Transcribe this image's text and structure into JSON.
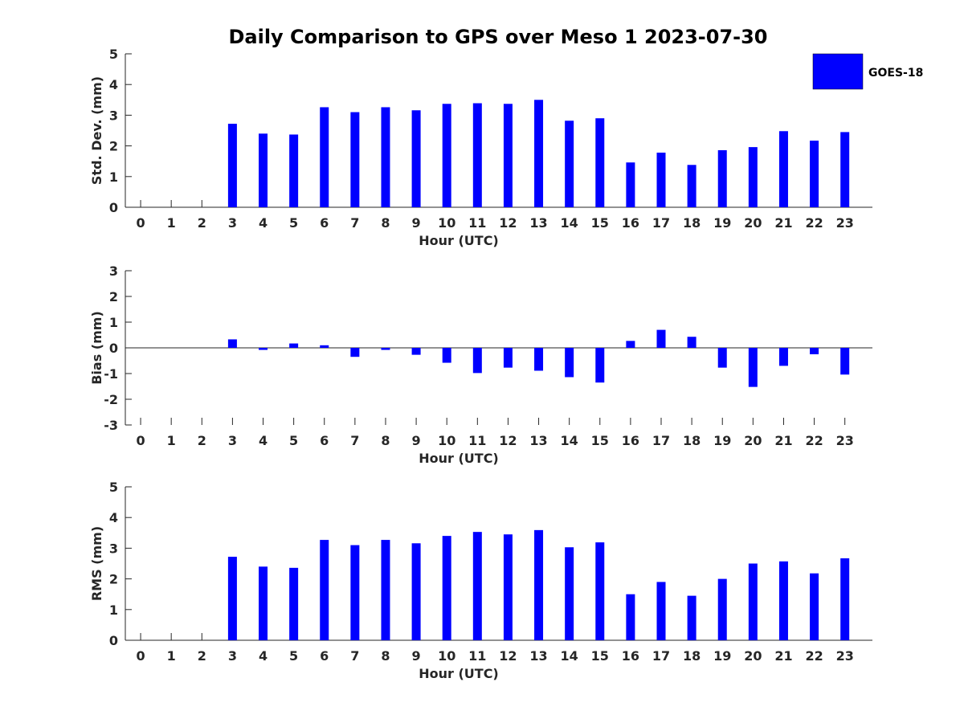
{
  "title": "Daily Comparison to GPS over Meso 1 2023-07-30",
  "legend": {
    "label": "GOES-18",
    "color": "#0000ff",
    "position": "top-right"
  },
  "chart_data": [
    {
      "type": "bar",
      "series_name": "GOES-18",
      "xlabel": "Hour (UTC)",
      "ylabel": "Std. Dev. (mm)",
      "ylim": [
        0,
        5
      ],
      "yticks": [
        0,
        1,
        2,
        3,
        4,
        5
      ],
      "categories": [
        0,
        1,
        2,
        3,
        4,
        5,
        6,
        7,
        8,
        9,
        10,
        11,
        12,
        13,
        14,
        15,
        16,
        17,
        18,
        19,
        20,
        21,
        22,
        23
      ],
      "values": [
        null,
        null,
        null,
        2.72,
        2.4,
        2.37,
        3.26,
        3.1,
        3.26,
        3.16,
        3.37,
        3.39,
        3.37,
        3.5,
        2.82,
        2.9,
        1.46,
        1.78,
        1.38,
        1.86,
        1.96,
        2.48,
        2.17,
        2.45
      ],
      "grid": false
    },
    {
      "type": "bar",
      "series_name": "GOES-18",
      "xlabel": "Hour (UTC)",
      "ylabel": "Bias (mm)",
      "ylim": [
        -3,
        3
      ],
      "yticks": [
        -3,
        -2,
        -1,
        0,
        1,
        2,
        3
      ],
      "categories": [
        0,
        1,
        2,
        3,
        4,
        5,
        6,
        7,
        8,
        9,
        10,
        11,
        12,
        13,
        14,
        15,
        16,
        17,
        18,
        19,
        20,
        21,
        22,
        23
      ],
      "values": [
        null,
        null,
        null,
        0.33,
        -0.08,
        0.17,
        0.1,
        -0.35,
        -0.08,
        -0.27,
        -0.58,
        -0.98,
        -0.77,
        -0.89,
        -1.14,
        -1.35,
        0.27,
        0.7,
        0.43,
        -0.77,
        -1.52,
        -0.7,
        -0.25,
        -1.04
      ],
      "grid": false
    },
    {
      "type": "bar",
      "series_name": "GOES-18",
      "xlabel": "Hour (UTC)",
      "ylabel": "RMS (mm)",
      "ylim": [
        0,
        5
      ],
      "yticks": [
        0,
        1,
        2,
        3,
        4,
        5
      ],
      "categories": [
        0,
        1,
        2,
        3,
        4,
        5,
        6,
        7,
        8,
        9,
        10,
        11,
        12,
        13,
        14,
        15,
        16,
        17,
        18,
        19,
        20,
        21,
        22,
        23
      ],
      "values": [
        null,
        null,
        null,
        2.72,
        2.4,
        2.36,
        3.27,
        3.1,
        3.27,
        3.16,
        3.4,
        3.53,
        3.45,
        3.59,
        3.03,
        3.19,
        1.5,
        1.9,
        1.45,
        2.0,
        2.5,
        2.57,
        2.18,
        2.67
      ],
      "grid": false
    }
  ]
}
